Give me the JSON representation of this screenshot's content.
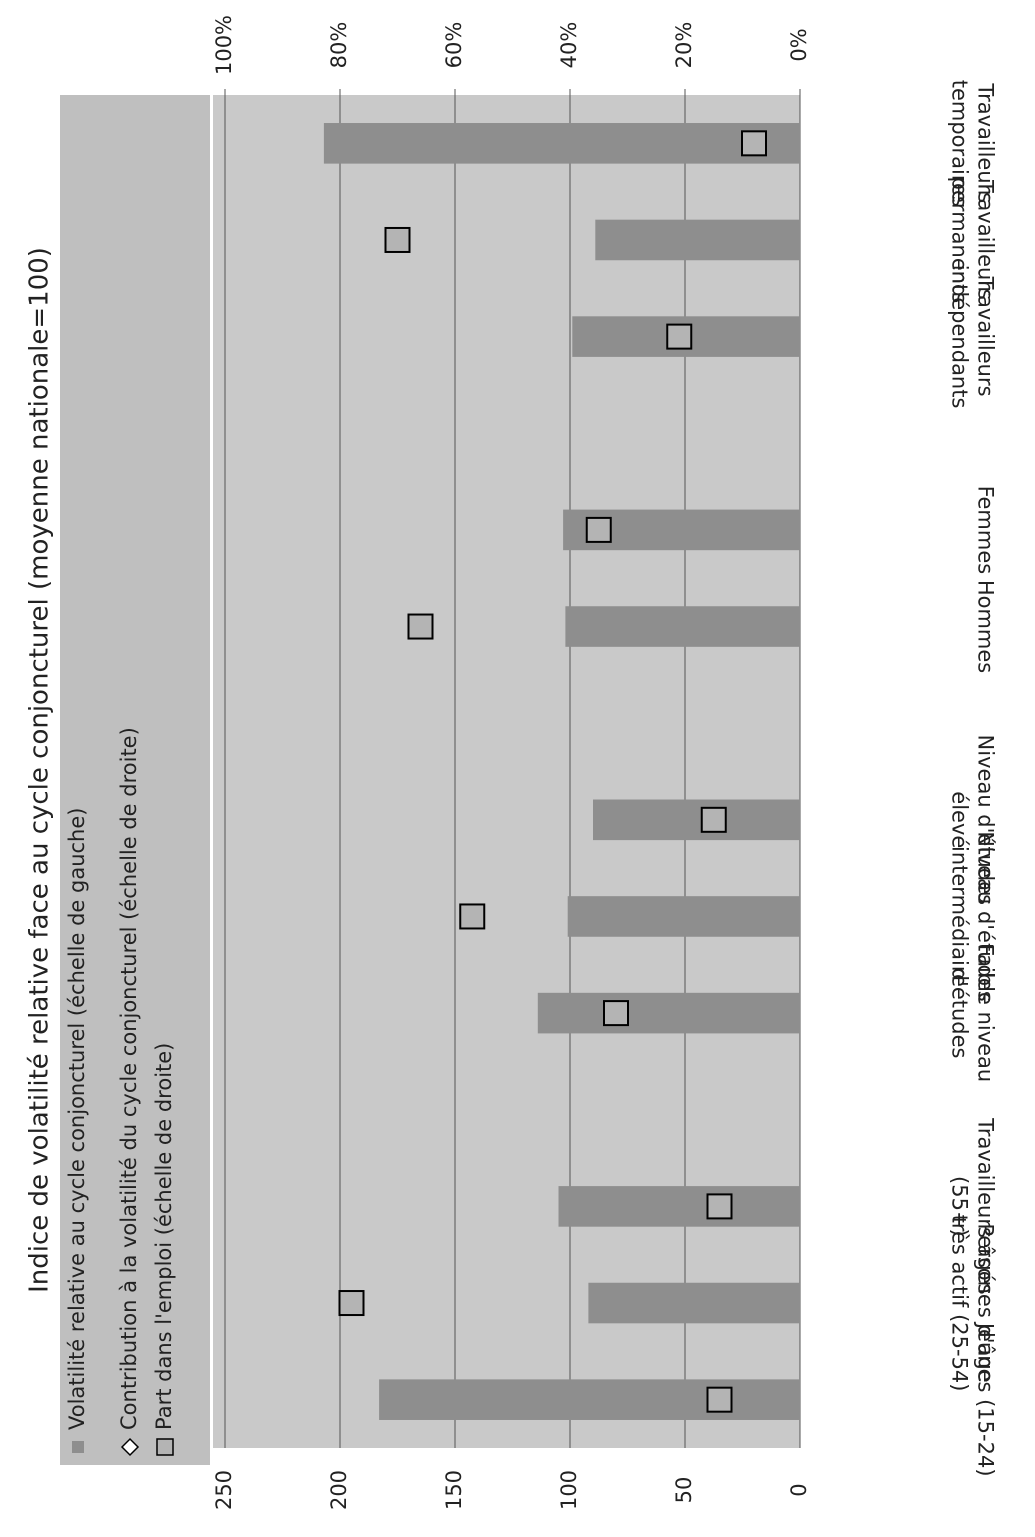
{
  "chart_data": {
    "type": "bar",
    "title": "Indice de volatilité relative face au cycle conjoncturel (moyenne nationale=100)",
    "categories": [
      "Jeunes (15-24)",
      "Persones d'âge\ntrès actif (25-54)",
      "Travailleurs âgés\n(55+)",
      null,
      "Faible niveau\nd'études",
      "Niveau d'études\nintermédiaire",
      "Niveau d'études\nélevé",
      null,
      "Hommes",
      "Femmes",
      null,
      "Travailleurs\nindépendants",
      "Travailleurs\npermanents",
      "Travailleurs\ntemporaires"
    ],
    "series": [
      {
        "name": "Volatilité relative au cycle conjoncturel  (échelle de gauche)",
        "color": "#8e8e8e",
        "marker": "bar",
        "axis": "y",
        "values": [
          183,
          92,
          105,
          null,
          114,
          101,
          90,
          null,
          102,
          103,
          null,
          99,
          89,
          207
        ]
      },
      {
        "name": "Contribution à la volatilité du cycle conjoncturel  (échelle de droite)",
        "color": "#ffffff",
        "marker": "diamond",
        "axis": "y2",
        "values": [
          null,
          null,
          null,
          null,
          null,
          null,
          null,
          null,
          null,
          null,
          null,
          null,
          null,
          null
        ]
      },
      {
        "name": "Part dans l'emploi (échelle de droite)",
        "color": "#b4b4b4",
        "marker": "square",
        "axis": "y2",
        "values": [
          14,
          78,
          14,
          null,
          32,
          57,
          15,
          null,
          66,
          35,
          null,
          21,
          70,
          8
        ]
      }
    ],
    "ylim": [
      0,
      250
    ],
    "yticks": [
      0,
      50,
      100,
      150,
      200,
      250
    ],
    "y2lim": [
      0,
      100
    ],
    "y2ticks": [
      {
        "value": 0,
        "label": "0%"
      },
      {
        "value": 20,
        "label": "20%"
      },
      {
        "value": 40,
        "label": "40%"
      },
      {
        "value": 60,
        "label": "60%"
      },
      {
        "value": 80,
        "label": "80%"
      },
      {
        "value": 100,
        "label": "100%"
      }
    ],
    "grid": true
  }
}
